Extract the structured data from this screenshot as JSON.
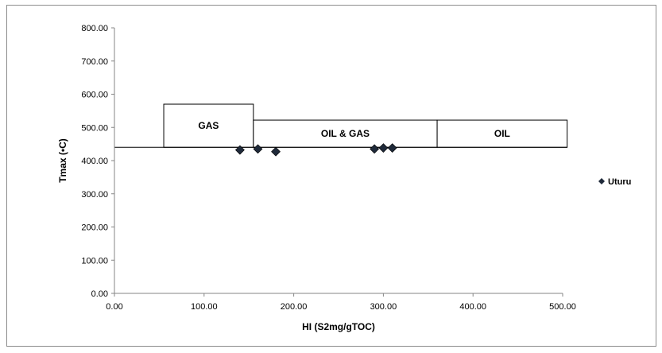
{
  "chart_data": {
    "type": "scatter",
    "title": "",
    "xlabel": "HI (S2mg/gTOC)",
    "ylabel": "Tmax (•C)",
    "xlim": [
      0,
      500
    ],
    "ylim": [
      0,
      800
    ],
    "x_ticks": [
      "0.00",
      "100.00",
      "200.00",
      "300.00",
      "400.00",
      "500.00"
    ],
    "y_ticks": [
      "0.00",
      "100.00",
      "200.00",
      "300.00",
      "400.00",
      "500.00",
      "600.00",
      "700.00",
      "800.00"
    ],
    "grid": false,
    "legend_position": "right",
    "regions": [
      {
        "label": "GAS",
        "x": [
          55,
          155
        ],
        "y": [
          440,
          570
        ]
      },
      {
        "label": "OIL & GAS",
        "x": [
          155,
          360
        ],
        "y": [
          440,
          522
        ]
      },
      {
        "label": "OIL",
        "x": [
          360,
          505
        ],
        "y": [
          440,
          522
        ]
      }
    ],
    "threshold_y": 440,
    "series": [
      {
        "name": "Uturu",
        "marker": "diamond",
        "color": "#1f2a3a",
        "points": [
          {
            "x": 140,
            "y": 432
          },
          {
            "x": 160,
            "y": 435
          },
          {
            "x": 180,
            "y": 427
          },
          {
            "x": 290,
            "y": 435
          },
          {
            "x": 300,
            "y": 438
          },
          {
            "x": 310,
            "y": 438
          }
        ]
      }
    ]
  }
}
